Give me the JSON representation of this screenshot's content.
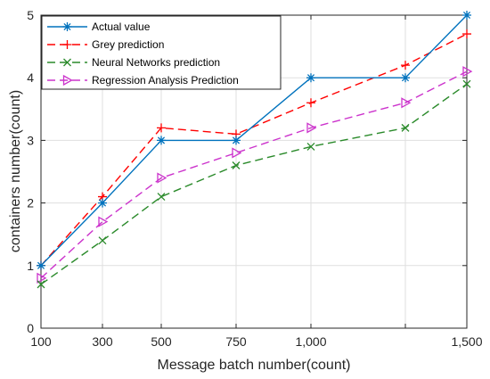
{
  "chart_data": {
    "type": "line",
    "title": "",
    "xlabel": "Message batch number(count)",
    "ylabel": "containers number(count)",
    "x_tick_labels": [
      "100",
      "300",
      "500",
      "750",
      "1,000",
      "",
      "1,500"
    ],
    "y_ticks": [
      0,
      1,
      2,
      3,
      4,
      5
    ],
    "y_tick_labels": [
      "0",
      "1",
      "2",
      "3",
      "4",
      "5"
    ],
    "ylim": [
      0,
      5
    ],
    "grid": true,
    "legend_position": "top-left",
    "series": [
      {
        "name": "Actual value",
        "color": "#0072BD",
        "dash": "solid",
        "marker": "asterisk",
        "values": [
          1,
          2,
          3,
          3,
          4,
          4,
          5
        ]
      },
      {
        "name": "Grey prediction",
        "color": "#FF0000",
        "dash": "dashed",
        "marker": "plus",
        "values": [
          1,
          2.1,
          3.2,
          3.1,
          3.6,
          4.2,
          4.7
        ]
      },
      {
        "name": "Neural Networks prediction",
        "color": "#2A8A2A",
        "dash": "dashed",
        "marker": "x",
        "values": [
          0.7,
          1.4,
          2.1,
          2.6,
          2.9,
          3.2,
          3.9
        ]
      },
      {
        "name": "Regression Analysis Prediction",
        "color": "#CC33CC",
        "dash": "dashed",
        "marker": "triangle-right",
        "values": [
          0.8,
          1.7,
          2.4,
          2.8,
          3.2,
          3.6,
          4.1
        ]
      }
    ]
  }
}
